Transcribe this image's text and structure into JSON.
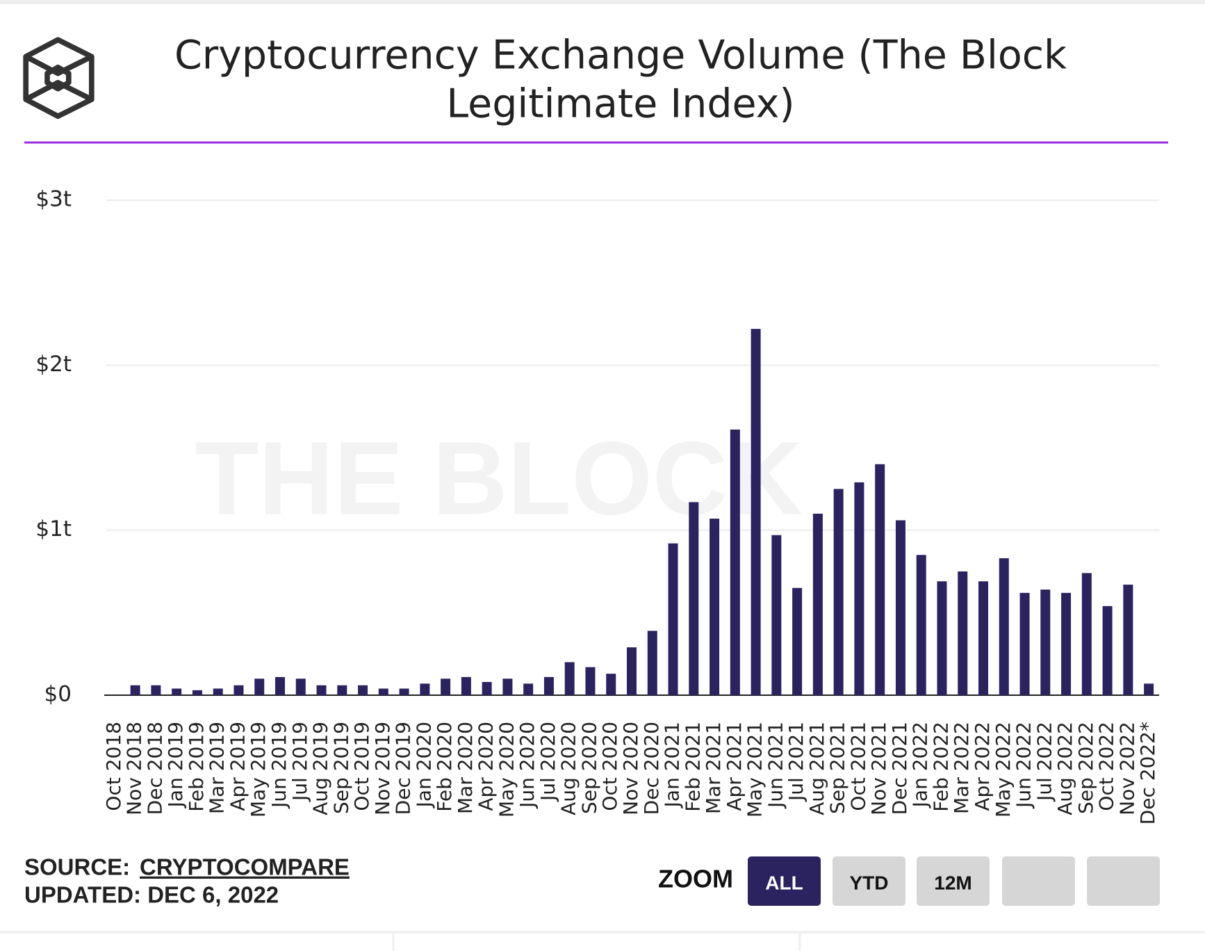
{
  "chart_data": {
    "type": "bar",
    "title_lines": [
      "Cryptocurrency Exchange Volume (The Block",
      "Legitimate Index)"
    ],
    "watermark": "THE BLOCK",
    "categories": [
      "Oct 2018",
      "Nov 2018",
      "Dec 2018",
      "Jan 2019",
      "Feb 2019",
      "Mar 2019",
      "Apr 2019",
      "May 2019",
      "Jun 2019",
      "Jul 2019",
      "Aug 2019",
      "Sep 2019",
      "Oct 2019",
      "Nov 2019",
      "Dec 2019",
      "Jan 2020",
      "Feb 2020",
      "Mar 2020",
      "Apr 2020",
      "May 2020",
      "Jun 2020",
      "Jul 2020",
      "Aug 2020",
      "Sep 2020",
      "Oct 2020",
      "Nov 2020",
      "Dec 2020",
      "Jan 2021",
      "Feb 2021",
      "Mar 2021",
      "Apr 2021",
      "May 2021",
      "Jun 2021",
      "Jul 2021",
      "Aug 2021",
      "Sep 2021",
      "Oct 2021",
      "Nov 2021",
      "Dec 2021",
      "Jan 2022",
      "Feb 2022",
      "Mar 2022",
      "Apr 2022",
      "May 2022",
      "Jun 2022",
      "Jul 2022",
      "Aug 2022",
      "Sep 2022",
      "Oct 2022",
      "Nov 2022",
      "Dec 2022*"
    ],
    "values": [
      0,
      0.06,
      0.06,
      0.04,
      0.03,
      0.04,
      0.06,
      0.1,
      0.11,
      0.1,
      0.06,
      0.06,
      0.06,
      0.04,
      0.04,
      0.07,
      0.1,
      0.11,
      0.08,
      0.1,
      0.07,
      0.11,
      0.2,
      0.17,
      0.13,
      0.29,
      0.39,
      0.92,
      1.17,
      1.07,
      1.61,
      2.22,
      0.97,
      0.65,
      1.1,
      1.25,
      1.29,
      1.4,
      1.06,
      0.85,
      0.69,
      0.75,
      0.69,
      0.83,
      0.62,
      0.64,
      0.62,
      0.74,
      0.54,
      0.67,
      0.07
    ],
    "color": "#2b2360",
    "ylim": [
      0,
      3
    ],
    "yticks": [
      {
        "value": 0,
        "label": "$0"
      },
      {
        "value": 1,
        "label": "$1t"
      },
      {
        "value": 2,
        "label": "$2t"
      },
      {
        "value": 3,
        "label": "$3t"
      }
    ],
    "grid": true,
    "source_label": "SOURCE:",
    "source": "CRYPTOCOMPARE",
    "updated": "UPDATED: DEC 6, 2022",
    "zoom_label": "ZOOM",
    "zoom_buttons": [
      "ALL",
      "YTD",
      "12M"
    ]
  }
}
